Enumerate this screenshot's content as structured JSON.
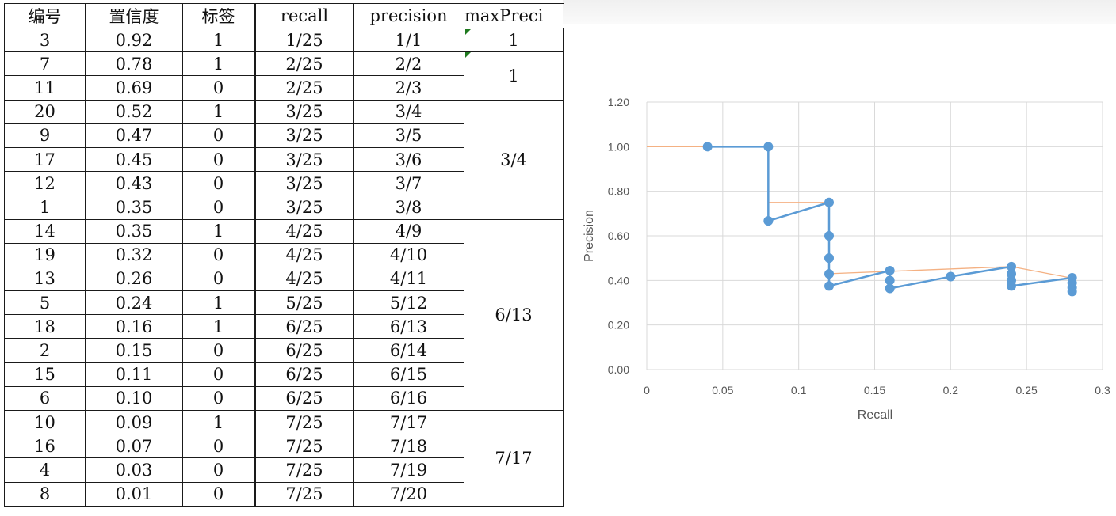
{
  "table": {
    "headers": [
      "编号",
      "置信度",
      "标签",
      "recall",
      "precision",
      "maxPreci"
    ],
    "rows": [
      [
        "3",
        "0.92",
        "1",
        "1/25",
        "1/1"
      ],
      [
        "7",
        "0.78",
        "1",
        "2/25",
        "2/2"
      ],
      [
        "11",
        "0.69",
        "0",
        "2/25",
        "2/3"
      ],
      [
        "20",
        "0.52",
        "1",
        "3/25",
        "3/4"
      ],
      [
        "9",
        "0.47",
        "0",
        "3/25",
        "3/5"
      ],
      [
        "17",
        "0.45",
        "0",
        "3/25",
        "3/6"
      ],
      [
        "12",
        "0.43",
        "0",
        "3/25",
        "3/7"
      ],
      [
        "1",
        "0.35",
        "0",
        "3/25",
        "3/8"
      ],
      [
        "14",
        "0.35",
        "1",
        "4/25",
        "4/9"
      ],
      [
        "19",
        "0.32",
        "0",
        "4/25",
        "4/10"
      ],
      [
        "13",
        "0.26",
        "0",
        "4/25",
        "4/11"
      ],
      [
        "5",
        "0.24",
        "1",
        "5/25",
        "5/12"
      ],
      [
        "18",
        "0.16",
        "1",
        "6/25",
        "6/13"
      ],
      [
        "2",
        "0.15",
        "0",
        "6/25",
        "6/14"
      ],
      [
        "15",
        "0.11",
        "0",
        "6/25",
        "6/15"
      ],
      [
        "6",
        "0.10",
        "0",
        "6/25",
        "6/16"
      ],
      [
        "10",
        "0.09",
        "1",
        "7/25",
        "7/17"
      ],
      [
        "16",
        "0.07",
        "0",
        "7/25",
        "7/18"
      ],
      [
        "4",
        "0.03",
        "0",
        "7/25",
        "7/19"
      ],
      [
        "8",
        "0.01",
        "0",
        "7/25",
        "7/20"
      ]
    ],
    "max_precision_groups": [
      {
        "value": "1",
        "rows": 1
      },
      {
        "value": "1",
        "rows": 2
      },
      {
        "value": "3/4",
        "rows": 5
      },
      {
        "value": "6/13",
        "rows": 8
      },
      {
        "value": "7/17",
        "rows": 4
      }
    ]
  },
  "chart_data": {
    "type": "line",
    "xlabel": "Recall",
    "ylabel": "Precision",
    "xlim": [
      0,
      0.3
    ],
    "ylim": [
      0,
      1.2
    ],
    "x_ticks": [
      "0",
      "0.05",
      "0.1",
      "0.15",
      "0.2",
      "0.25",
      "0.3"
    ],
    "y_ticks": [
      "0.00",
      "0.20",
      "0.40",
      "0.60",
      "0.80",
      "1.00",
      "1.20"
    ],
    "grid": true,
    "series": [
      {
        "color": "#5b9bd5",
        "markers": true,
        "points": [
          [
            0.04,
            1.0
          ],
          [
            0.08,
            1.0
          ],
          [
            0.08,
            0.667
          ],
          [
            0.12,
            0.75
          ],
          [
            0.12,
            0.6
          ],
          [
            0.12,
            0.5
          ],
          [
            0.12,
            0.429
          ],
          [
            0.12,
            0.375
          ],
          [
            0.16,
            0.444
          ],
          [
            0.16,
            0.4
          ],
          [
            0.16,
            0.364
          ],
          [
            0.2,
            0.417
          ],
          [
            0.24,
            0.462
          ],
          [
            0.24,
            0.429
          ],
          [
            0.24,
            0.4
          ],
          [
            0.24,
            0.375
          ],
          [
            0.28,
            0.412
          ],
          [
            0.28,
            0.389
          ],
          [
            0.28,
            0.368
          ],
          [
            0.28,
            0.35
          ]
        ]
      },
      {
        "color": "#f4b183",
        "markers": false,
        "segments": [
          [
            [
              0,
              1.0
            ],
            [
              0.08,
              1.0
            ]
          ],
          [
            [
              0.08,
              0.75
            ],
            [
              0.12,
              0.75
            ]
          ],
          [
            [
              0.12,
              0.43
            ],
            [
              0.24,
              0.462
            ],
            [
              0.28,
              0.41
            ]
          ]
        ]
      }
    ]
  }
}
